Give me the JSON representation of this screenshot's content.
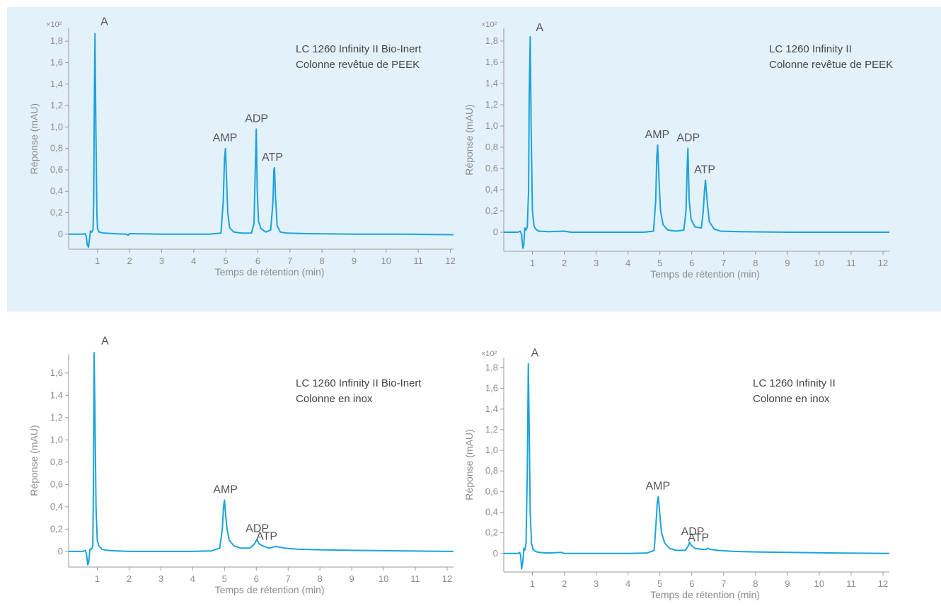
{
  "colors": {
    "trace": "#1aa3dc",
    "axis": "#999999",
    "panel_bg": "#e3f1fa"
  },
  "chart_data": [
    {
      "type": "line",
      "title_lines": [
        "LC  1260 Infinity II Bio-Inert",
        "Colonne revêtue de PEEK"
      ],
      "xlabel": "Temps de rétention (min)",
      "ylabel": "Réponse (mAU)",
      "y_multiplier": "×10²",
      "xlim": [
        0.1,
        12.1
      ],
      "ylim": [
        -0.14,
        1.92
      ],
      "xticks": [
        1,
        2,
        3,
        4,
        5,
        6,
        7,
        8,
        9,
        10,
        11,
        12
      ],
      "yticks": [
        0,
        0.2,
        0.4,
        0.6,
        0.8,
        1.0,
        1.2,
        1.4,
        1.6,
        1.8
      ],
      "ytick_labels": [
        "0",
        "0,2",
        "0,4",
        "0,6",
        "0,8",
        "1,0",
        "1,2",
        "1,4",
        "1,6",
        "1,8"
      ],
      "peaks": [
        {
          "label": "A",
          "x": 0.92,
          "y": 1.87
        },
        {
          "label": "AMP",
          "x": 4.99,
          "y": 0.8
        },
        {
          "label": "ADP",
          "x": 5.95,
          "y": 0.98
        },
        {
          "label": "ATP",
          "x": 6.52,
          "y": 0.62
        }
      ],
      "series": [
        {
          "x": [
            0.1,
            0.55,
            0.62,
            0.65,
            0.68,
            0.72,
            0.78,
            0.82,
            0.86,
            0.88,
            0.9,
            0.92,
            0.95,
            0.98,
            1.0,
            1.05,
            1.2,
            1.5,
            1.9,
            1.95,
            2.0,
            3.0,
            4.5,
            4.85,
            4.92,
            4.96,
            4.99,
            5.02,
            5.06,
            5.12,
            5.25,
            5.5,
            5.8,
            5.88,
            5.92,
            5.95,
            5.98,
            6.02,
            6.1,
            6.25,
            6.4,
            6.47,
            6.5,
            6.52,
            6.55,
            6.6,
            6.7,
            6.9,
            7.5,
            9,
            10.5,
            12.1
          ],
          "y": [
            0,
            0,
            0.005,
            -0.02,
            -0.1,
            -0.12,
            0.03,
            0.02,
            0.04,
            0.3,
            1.2,
            1.87,
            1.0,
            0.2,
            0.05,
            0.02,
            0.01,
            0.005,
            0.0,
            -0.01,
            0.005,
            0.0,
            0.0,
            0.01,
            0.3,
            0.7,
            0.8,
            0.55,
            0.2,
            0.06,
            0.02,
            0.01,
            0.01,
            0.1,
            0.6,
            0.98,
            0.4,
            0.12,
            0.05,
            0.02,
            0.04,
            0.3,
            0.6,
            0.62,
            0.35,
            0.08,
            0.02,
            0.01,
            0.005,
            0.0,
            0.0,
            -0.005
          ]
        }
      ]
    },
    {
      "type": "line",
      "title_lines": [
        "LC 1260 Infinity II",
        "Colonne revêtue de PEEK"
      ],
      "xlabel": "Temps de rétention (min)",
      "ylabel": "Réponse (mAU)",
      "y_multiplier": "×10²",
      "xlim": [
        0.1,
        12.2
      ],
      "ylim": [
        -0.18,
        1.92
      ],
      "xticks": [
        1,
        2,
        3,
        4,
        5,
        6,
        7,
        8,
        9,
        10,
        11,
        12
      ],
      "yticks": [
        0,
        0.2,
        0.4,
        0.6,
        0.8,
        1.0,
        1.2,
        1.4,
        1.6,
        1.8
      ],
      "ytick_labels": [
        "0",
        "0,2",
        "0,4",
        "0,6",
        "0,8",
        "1,0",
        "1,2",
        "1,4",
        "1,6",
        "1,8"
      ],
      "peaks": [
        {
          "label": "A",
          "x": 0.93,
          "y": 1.84
        },
        {
          "label": "AMP",
          "x": 4.93,
          "y": 0.82
        },
        {
          "label": "ADP",
          "x": 5.88,
          "y": 0.79
        },
        {
          "label": "ATP",
          "x": 6.43,
          "y": 0.49
        }
      ],
      "series": [
        {
          "x": [
            0.1,
            0.55,
            0.62,
            0.66,
            0.7,
            0.73,
            0.76,
            0.8,
            0.84,
            0.88,
            0.9,
            0.93,
            0.96,
            1.0,
            1.05,
            1.1,
            1.2,
            1.5,
            2.0,
            2.2,
            3.0,
            4.5,
            4.8,
            4.87,
            4.9,
            4.93,
            4.97,
            5.02,
            5.1,
            5.25,
            5.5,
            5.75,
            5.82,
            5.86,
            5.88,
            5.92,
            5.98,
            6.1,
            6.3,
            6.36,
            6.4,
            6.43,
            6.48,
            6.55,
            6.7,
            6.9,
            7.5,
            9,
            10.5,
            12.2
          ],
          "y": [
            0,
            0,
            0.01,
            -0.02,
            -0.15,
            -0.12,
            0.04,
            0.02,
            0.05,
            0.4,
            1.3,
            1.84,
            1.0,
            0.2,
            0.06,
            0.03,
            0.01,
            0.005,
            0.01,
            0.0,
            0.0,
            0.0,
            0.01,
            0.3,
            0.7,
            0.82,
            0.5,
            0.2,
            0.07,
            0.02,
            0.01,
            0.02,
            0.2,
            0.65,
            0.79,
            0.3,
            0.12,
            0.05,
            0.04,
            0.2,
            0.4,
            0.49,
            0.3,
            0.1,
            0.03,
            0.01,
            0.005,
            0.0,
            0.0,
            0.0
          ]
        }
      ]
    },
    {
      "type": "line",
      "title_lines": [
        "LC  1260 Infinity II Bio-Inert",
        "Colonne en inox"
      ],
      "xlabel": "Temps de rétention (min)",
      "ylabel": "Réponse (mAU)",
      "y_multiplier": "",
      "xlim": [
        0.1,
        12.2
      ],
      "ylim": [
        -0.14,
        1.77
      ],
      "xticks": [
        1,
        2,
        3,
        4,
        5,
        6,
        7,
        8,
        9,
        10,
        11,
        12
      ],
      "yticks": [
        0,
        0.2,
        0.4,
        0.6,
        0.8,
        1.0,
        1.2,
        1.4,
        1.6
      ],
      "ytick_labels": [
        "0",
        "0,2",
        "0,4",
        "0,6",
        "0,8",
        "1,0",
        "1,2",
        "1,4",
        "1,6"
      ],
      "peaks": [
        {
          "label": "A",
          "x": 0.9,
          "y": 1.78
        },
        {
          "label": "AMP",
          "x": 5.0,
          "y": 0.46
        },
        {
          "label": "ADP",
          "x": 6.02,
          "y": 0.11
        },
        {
          "label": "ATP",
          "x": 6.62,
          "y": 0.04
        }
      ],
      "series": [
        {
          "x": [
            0.1,
            0.55,
            0.62,
            0.66,
            0.7,
            0.73,
            0.77,
            0.82,
            0.86,
            0.88,
            0.9,
            0.93,
            0.96,
            1.0,
            1.05,
            1.15,
            1.3,
            1.6,
            2.0,
            3.0,
            4.0,
            4.6,
            4.85,
            4.93,
            4.97,
            5.0,
            5.03,
            5.08,
            5.15,
            5.3,
            5.5,
            5.8,
            5.95,
            6.02,
            6.08,
            6.2,
            6.4,
            6.55,
            6.62,
            6.7,
            6.9,
            7.3,
            8.0,
            9.0,
            10.5,
            12.2
          ],
          "y": [
            0,
            0,
            0.01,
            -0.02,
            -0.12,
            -0.1,
            0.02,
            0.02,
            0.05,
            0.6,
            1.78,
            1.2,
            0.4,
            0.1,
            0.05,
            0.02,
            0.01,
            0.005,
            0.0,
            0.0,
            0.0,
            0.005,
            0.03,
            0.2,
            0.4,
            0.46,
            0.35,
            0.2,
            0.1,
            0.05,
            0.03,
            0.03,
            0.07,
            0.11,
            0.07,
            0.05,
            0.03,
            0.04,
            0.045,
            0.04,
            0.03,
            0.02,
            0.015,
            0.01,
            0.005,
            0.0
          ]
        }
      ]
    },
    {
      "type": "line",
      "title_lines": [
        "LC 1260 Infinity II",
        "Colonne en inox"
      ],
      "xlabel": "Temps de rétention (min)",
      "ylabel": "Réponse (mAU)",
      "y_multiplier": "×10²",
      "xlim": [
        0.1,
        12.2
      ],
      "ylim": [
        -0.18,
        1.9
      ],
      "xticks": [
        1,
        2,
        3,
        4,
        5,
        6,
        7,
        8,
        9,
        10,
        11,
        12
      ],
      "yticks": [
        0,
        0.2,
        0.4,
        0.6,
        0.8,
        1.0,
        1.2,
        1.4,
        1.6,
        1.8
      ],
      "ytick_labels": [
        "0",
        "0,2",
        "0,4",
        "0,6",
        "0,8",
        "1,0",
        "1,2",
        "1,4",
        "1,6",
        "1,8"
      ],
      "peaks": [
        {
          "label": "A",
          "x": 0.87,
          "y": 1.84
        },
        {
          "label": "AMP",
          "x": 4.95,
          "y": 0.55
        },
        {
          "label": "ADP",
          "x": 5.93,
          "y": 0.11
        },
        {
          "label": "ATP",
          "x": 6.5,
          "y": 0.05
        }
      ],
      "series": [
        {
          "x": [
            0.1,
            0.55,
            0.6,
            0.63,
            0.66,
            0.7,
            0.73,
            0.76,
            0.8,
            0.84,
            0.87,
            0.9,
            0.93,
            0.97,
            1.02,
            1.1,
            1.2,
            1.5,
            1.9,
            2.0,
            3.0,
            4.0,
            4.6,
            4.82,
            4.88,
            4.92,
            4.95,
            4.99,
            5.05,
            5.15,
            5.3,
            5.5,
            5.8,
            5.9,
            5.93,
            5.98,
            6.1,
            6.3,
            6.45,
            6.5,
            6.58,
            6.8,
            7.3,
            8.0,
            9.0,
            10.5,
            12.2
          ],
          "y": [
            0,
            0,
            0.01,
            -0.02,
            -0.15,
            -0.08,
            0.05,
            0.03,
            0.1,
            0.8,
            1.84,
            1.2,
            0.4,
            0.1,
            0.04,
            0.02,
            0.01,
            0.005,
            0.01,
            0.0,
            0.0,
            0.0,
            0.005,
            0.03,
            0.3,
            0.5,
            0.55,
            0.4,
            0.2,
            0.1,
            0.05,
            0.03,
            0.03,
            0.08,
            0.11,
            0.08,
            0.05,
            0.04,
            0.04,
            0.05,
            0.04,
            0.03,
            0.02,
            0.015,
            0.01,
            0.005,
            0.0
          ]
        }
      ]
    }
  ]
}
